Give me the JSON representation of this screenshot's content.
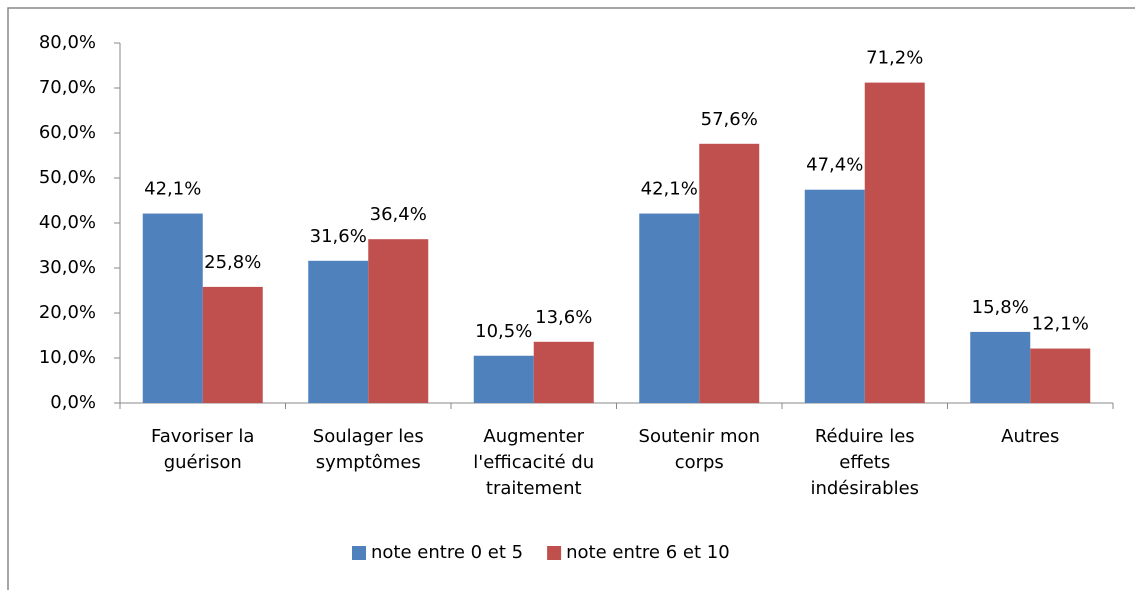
{
  "chart_data": {
    "type": "bar",
    "categories": [
      "Favoriser la guérison",
      "Soulager les symptômes",
      "Augmenter l'efficacité du traitement",
      "Soutenir mon corps",
      "Réduire les effets indésirables",
      "Autres"
    ],
    "series": [
      {
        "name": "note entre 0 et 5",
        "color": "#4f81bd",
        "values": [
          42.1,
          31.6,
          10.5,
          42.1,
          47.4,
          15.8
        ],
        "value_labels": [
          "42,1%",
          "31,6%",
          "10,5%",
          "42,1%",
          "47,4%",
          "15,8%"
        ]
      },
      {
        "name": "note entre 6 et 10",
        "color": "#c0504d",
        "values": [
          25.8,
          36.4,
          13.6,
          57.6,
          71.2,
          12.1
        ],
        "value_labels": [
          "25,8%",
          "36,4%",
          "13,6%",
          "57,6%",
          "71,2%",
          "12,1%"
        ]
      }
    ],
    "ylim": [
      0,
      80
    ],
    "yticks": [
      {
        "value": 0,
        "label": "0,0%"
      },
      {
        "value": 10,
        "label": "10,0%"
      },
      {
        "value": 20,
        "label": "20,0%"
      },
      {
        "value": 30,
        "label": "30,0%"
      },
      {
        "value": 40,
        "label": "40,0%"
      },
      {
        "value": 50,
        "label": "50,0%"
      },
      {
        "value": 60,
        "label": "60,0%"
      },
      {
        "value": 70,
        "label": "70,0%"
      },
      {
        "value": 80,
        "label": "80,0%"
      }
    ],
    "legend": "bottom"
  }
}
